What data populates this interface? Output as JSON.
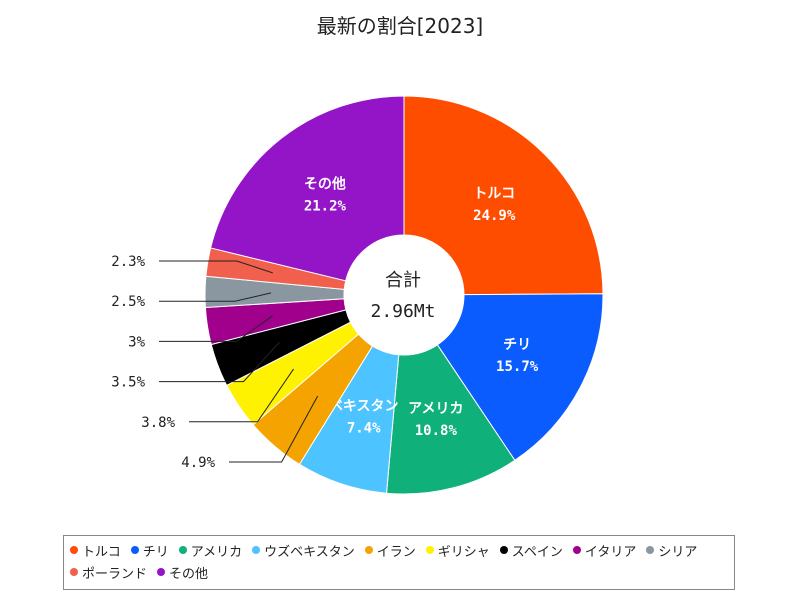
{
  "chart_data": {
    "type": "pie",
    "title": "最新の割合[2023]",
    "center_label": "合計",
    "center_value": "2.96Mt",
    "slices": [
      {
        "name": "トルコ",
        "value": 24.9,
        "label": "24.9%",
        "color": "#ff4d00"
      },
      {
        "name": "チリ",
        "value": 15.7,
        "label": "15.7%",
        "color": "#0a5cff"
      },
      {
        "name": "アメリカ",
        "value": 10.8,
        "label": "10.8%",
        "color": "#10b07a"
      },
      {
        "name": "ウズベキスタン",
        "value": 7.4,
        "label": "7.4%",
        "color": "#4dc3ff"
      },
      {
        "name": "イラン",
        "value": 4.9,
        "label": "4.9%",
        "color": "#f5a300"
      },
      {
        "name": "ギリシャ",
        "value": 3.8,
        "label": "3.8%",
        "color": "#fff200"
      },
      {
        "name": "スペイン",
        "value": 3.5,
        "label": "3.5%",
        "color": "#000000"
      },
      {
        "name": "イタリア",
        "value": 3.0,
        "label": "3%",
        "color": "#a0008c"
      },
      {
        "name": "シリア",
        "value": 2.5,
        "label": "2.5%",
        "color": "#8a96a0"
      },
      {
        "name": "ポーランド",
        "value": 2.3,
        "label": "2.3%",
        "color": "#f0604c"
      },
      {
        "name": "その他",
        "value": 21.2,
        "label": "21.2%",
        "color": "#9414c8"
      }
    ],
    "inside_label_names": [
      "トルコ",
      "チリ",
      "アメリカ",
      "ウズベキスタン",
      "その他"
    ],
    "inside_label_text_names": [
      "トルコ",
      "チリ",
      "アメリカ",
      "ベキスタン",
      "その他"
    ],
    "legend_placement": "bottom"
  }
}
